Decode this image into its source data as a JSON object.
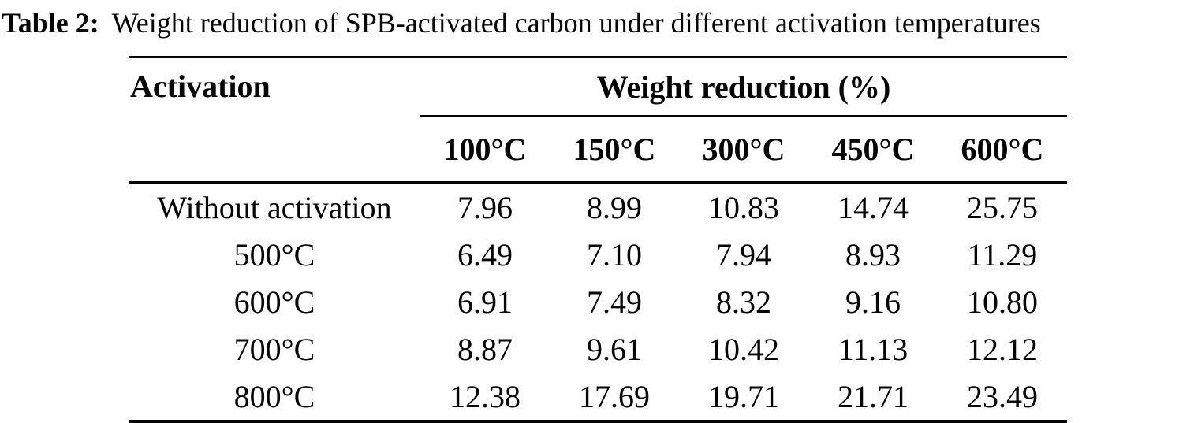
{
  "caption": {
    "label": "Table 2:",
    "text": "Weight reduction of SPB-activated carbon under different activation temperatures"
  },
  "table": {
    "col1_header": "Activation",
    "spanner_header": "Weight reduction (%)",
    "temp_headers": [
      "100°C",
      "150°C",
      "300°C",
      "450°C",
      "600°C"
    ],
    "rows": [
      [
        "Without activation",
        "7.96",
        "8.99",
        "10.83",
        "14.74",
        "25.75"
      ],
      [
        "500°C",
        "6.49",
        "7.10",
        "7.94",
        "8.93",
        "11.29"
      ],
      [
        "600°C",
        "6.91",
        "7.49",
        "8.32",
        "9.16",
        "10.80"
      ],
      [
        "700°C",
        "8.87",
        "9.61",
        "10.42",
        "11.13",
        "12.12"
      ],
      [
        "800°C",
        "12.38",
        "17.69",
        "19.71",
        "21.71",
        "23.49"
      ]
    ]
  },
  "colors": {
    "text": "#050505",
    "background": "#ffffff",
    "rule": "#050505"
  }
}
